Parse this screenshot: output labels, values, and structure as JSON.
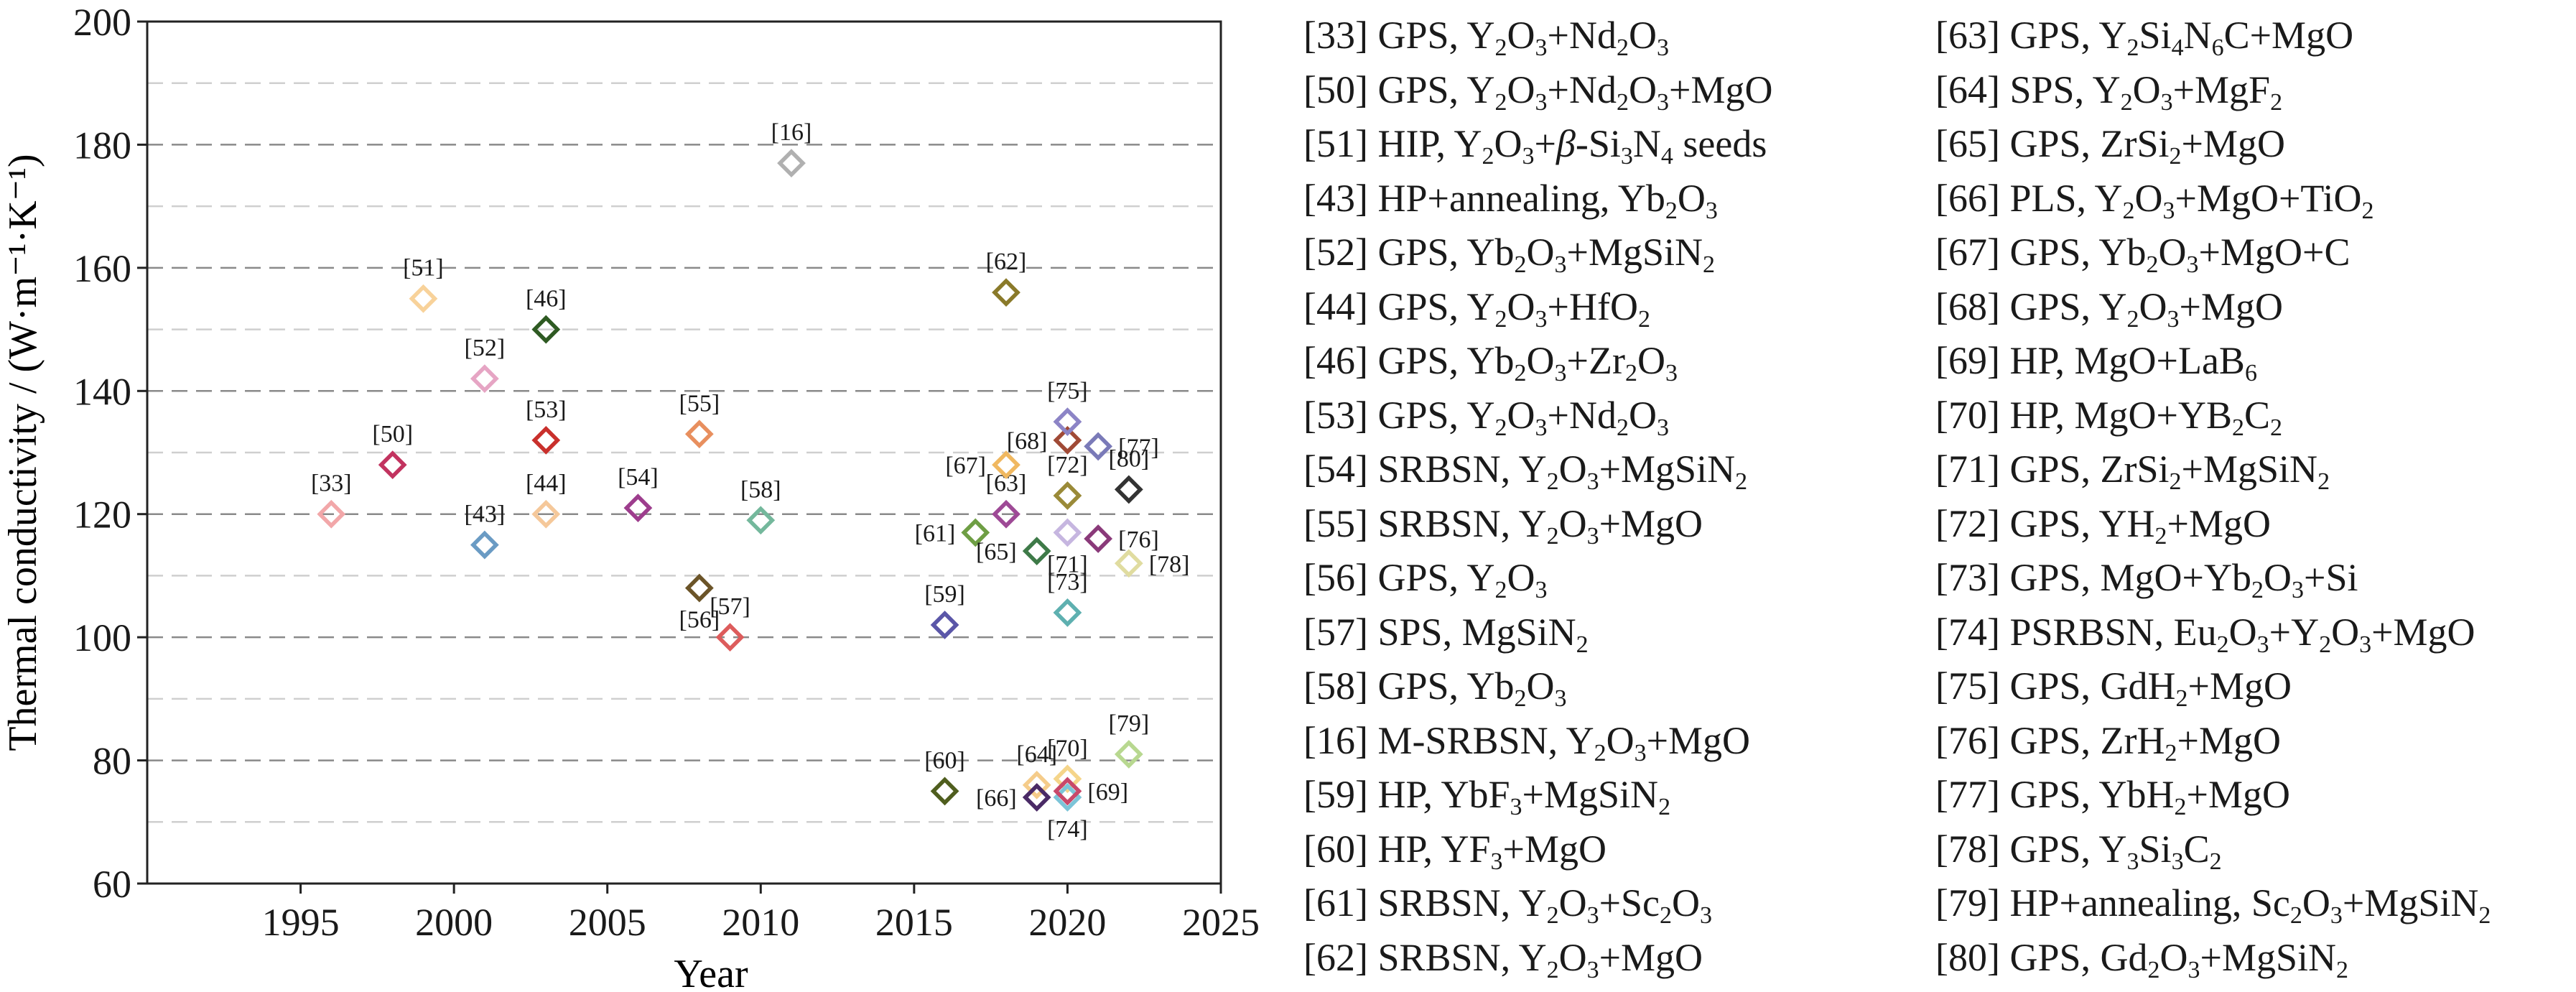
{
  "chart_data": {
    "type": "scatter",
    "title": "",
    "xlabel": "Year",
    "ylabel": "Thermal conductivity / (W·m⁻¹·K⁻¹)",
    "xlim": [
      1990,
      2025
    ],
    "ylim": [
      60,
      200
    ],
    "xticks": [
      1995,
      2000,
      2005,
      2010,
      2015,
      2020,
      2025
    ],
    "yticks": [
      60,
      80,
      100,
      120,
      140,
      160,
      180,
      200
    ],
    "minor_gridlines": [
      70,
      90,
      110,
      130,
      150,
      170,
      190
    ],
    "grid": "horizontal dashed",
    "marker": "open diamond",
    "points": [
      {
        "label": "[33]",
        "x": 1996,
        "y": 120,
        "color": "#f2a7a9",
        "lp": "a"
      },
      {
        "label": "[50]",
        "x": 1998,
        "y": 128,
        "color": "#c2335f",
        "lp": "a"
      },
      {
        "label": "[51]",
        "x": 1999,
        "y": 155,
        "color": "#f8d29a",
        "lp": "a"
      },
      {
        "label": "[43]",
        "x": 2001,
        "y": 115,
        "color": "#6a9bc4",
        "lp": "a"
      },
      {
        "label": "[52]",
        "x": 2001,
        "y": 142,
        "color": "#e6a5c4",
        "lp": "a"
      },
      {
        "label": "[46]",
        "x": 2003,
        "y": 150,
        "color": "#2e5a22",
        "lp": "a"
      },
      {
        "label": "[53]",
        "x": 2003,
        "y": 132,
        "color": "#c9302c",
        "lp": "a"
      },
      {
        "label": "[44]",
        "x": 2003,
        "y": 120,
        "color": "#f5c89a",
        "lp": "a"
      },
      {
        "label": "[54]",
        "x": 2006,
        "y": 121,
        "color": "#9d3d8d",
        "lp": "a"
      },
      {
        "label": "[55]",
        "x": 2008,
        "y": 133,
        "color": "#e88f5e",
        "lp": "a"
      },
      {
        "label": "[56]",
        "x": 2008,
        "y": 108,
        "color": "#6b5428",
        "lp": "b"
      },
      {
        "label": "[57]",
        "x": 2009,
        "y": 100,
        "color": "#dd5c5c",
        "lp": "a"
      },
      {
        "label": "[58]",
        "x": 2010,
        "y": 119,
        "color": "#74b89c",
        "lp": "a"
      },
      {
        "label": "[16]",
        "x": 2011,
        "y": 177,
        "color": "#b0b0b0",
        "lp": "a"
      },
      {
        "label": "[59]",
        "x": 2016,
        "y": 102,
        "color": "#5a56a8",
        "lp": "a"
      },
      {
        "label": "[60]",
        "x": 2016,
        "y": 75,
        "color": "#4f5e1e",
        "lp": "a"
      },
      {
        "label": "[61]",
        "x": 2017,
        "y": 117,
        "color": "#6e9e44",
        "lp": "l"
      },
      {
        "label": "[62]",
        "x": 2018,
        "y": 156,
        "color": "#8a7a2a",
        "lp": "a"
      },
      {
        "label": "[63]",
        "x": 2018,
        "y": 120,
        "color": "#9e4a96",
        "lp": "a"
      },
      {
        "label": "[67]",
        "x": 2018,
        "y": 128,
        "color": "#f0b860",
        "lp": "l"
      },
      {
        "label": "[64]",
        "x": 2019,
        "y": 76,
        "color": "#f5cc8a",
        "lp": "a"
      },
      {
        "label": "[65]",
        "x": 2019,
        "y": 114,
        "color": "#3e7a48",
        "lp": "l"
      },
      {
        "label": "[66]",
        "x": 2019,
        "y": 74,
        "color": "#4a2a66",
        "lp": "l"
      },
      {
        "label": "[68]",
        "x": 2020,
        "y": 132,
        "color": "#a04a36",
        "lp": "l"
      },
      {
        "label": "[75]",
        "x": 2020,
        "y": 135,
        "color": "#8c84c6",
        "lp": "a"
      },
      {
        "label": "[72]",
        "x": 2020,
        "y": 123,
        "color": "#9a8a38",
        "lp": "a"
      },
      {
        "label": "[71]",
        "x": 2020,
        "y": 117,
        "color": "#c6b6e0",
        "lp": "b"
      },
      {
        "label": "[73]",
        "x": 2020,
        "y": 104,
        "color": "#5eb0b0",
        "lp": "a"
      },
      {
        "label": "[70]",
        "x": 2020,
        "y": 77,
        "color": "#f5d58a",
        "lp": "a"
      },
      {
        "label": "[74]",
        "x": 2020,
        "y": 74,
        "color": "#7cc4d8",
        "lp": "b"
      },
      {
        "label": "[69]",
        "x": 2020,
        "y": 75,
        "color": "#c8486a",
        "lp": "r"
      },
      {
        "label": "[76]",
        "x": 2021,
        "y": 116,
        "color": "#8a3a7a",
        "lp": "r"
      },
      {
        "label": "[77]",
        "x": 2021,
        "y": 131,
        "color": "#7a7ab8",
        "lp": "r"
      },
      {
        "label": "[80]",
        "x": 2022,
        "y": 124,
        "color": "#333333",
        "lp": "a"
      },
      {
        "label": "[78]",
        "x": 2022,
        "y": 112,
        "color": "#e0dca0",
        "lp": "r"
      },
      {
        "label": "[79]",
        "x": 2022,
        "y": 81,
        "color": "#b8d890",
        "lp": "a"
      }
    ]
  },
  "legend": {
    "columns": [
      [
        {
          "ref": "[33]",
          "method": "GPS,",
          "parts": [
            [
              "Y"
            ],
            [
              "2",
              "s"
            ],
            [
              "O"
            ],
            [
              "3",
              "s"
            ],
            [
              "+Nd"
            ],
            [
              "2",
              "s"
            ],
            [
              "O"
            ],
            [
              "3",
              "s"
            ]
          ]
        },
        {
          "ref": "[50]",
          "method": "GPS,",
          "parts": [
            [
              "Y"
            ],
            [
              "2",
              "s"
            ],
            [
              "O"
            ],
            [
              "3",
              "s"
            ],
            [
              "+Nd"
            ],
            [
              "2",
              "s"
            ],
            [
              "O"
            ],
            [
              "3",
              "s"
            ],
            [
              "+MgO"
            ]
          ]
        },
        {
          "ref": "[51]",
          "method": "HIP,",
          "parts": [
            [
              "Y"
            ],
            [
              "2",
              "s"
            ],
            [
              "O"
            ],
            [
              "3",
              "s"
            ],
            [
              "+"
            ],
            [
              "β",
              "i"
            ],
            [
              "-Si"
            ],
            [
              "3",
              "s"
            ],
            [
              "N"
            ],
            [
              "4",
              "s"
            ],
            [
              " seeds"
            ]
          ]
        },
        {
          "ref": "[43]",
          "method": "HP+annealing,",
          "parts": [
            [
              "Yb"
            ],
            [
              "2",
              "s"
            ],
            [
              "O"
            ],
            [
              "3",
              "s"
            ]
          ]
        },
        {
          "ref": "[52]",
          "method": "GPS,",
          "parts": [
            [
              "Yb"
            ],
            [
              "2",
              "s"
            ],
            [
              "O"
            ],
            [
              "3",
              "s"
            ],
            [
              "+MgSiN"
            ],
            [
              "2",
              "s"
            ]
          ]
        },
        {
          "ref": "[44]",
          "method": "GPS,",
          "parts": [
            [
              "Y"
            ],
            [
              "2",
              "s"
            ],
            [
              "O"
            ],
            [
              "3",
              "s"
            ],
            [
              "+HfO"
            ],
            [
              "2",
              "s"
            ]
          ]
        },
        {
          "ref": "[46]",
          "method": "GPS,",
          "parts": [
            [
              "Yb"
            ],
            [
              "2",
              "s"
            ],
            [
              "O"
            ],
            [
              "3",
              "s"
            ],
            [
              "+Zr"
            ],
            [
              "2",
              "s"
            ],
            [
              "O"
            ],
            [
              "3",
              "s"
            ]
          ]
        },
        {
          "ref": "[53]",
          "method": "GPS,",
          "parts": [
            [
              "Y"
            ],
            [
              "2",
              "s"
            ],
            [
              "O"
            ],
            [
              "3",
              "s"
            ],
            [
              "+Nd"
            ],
            [
              "2",
              "s"
            ],
            [
              "O"
            ],
            [
              "3",
              "s"
            ]
          ]
        },
        {
          "ref": "[54]",
          "method": "SRBSN,",
          "parts": [
            [
              "Y"
            ],
            [
              "2",
              "s"
            ],
            [
              "O"
            ],
            [
              "3",
              "s"
            ],
            [
              "+MgSiN"
            ],
            [
              "2",
              "s"
            ]
          ]
        },
        {
          "ref": "[55]",
          "method": "SRBSN,",
          "parts": [
            [
              "Y"
            ],
            [
              "2",
              "s"
            ],
            [
              "O"
            ],
            [
              "3",
              "s"
            ],
            [
              "+MgO"
            ]
          ]
        },
        {
          "ref": "[56]",
          "method": "GPS,",
          "parts": [
            [
              "Y"
            ],
            [
              "2",
              "s"
            ],
            [
              "O"
            ],
            [
              "3",
              "s"
            ]
          ]
        },
        {
          "ref": "[57]",
          "method": "SPS,",
          "parts": [
            [
              "MgSiN"
            ],
            [
              "2",
              "s"
            ]
          ]
        },
        {
          "ref": "[58]",
          "method": "GPS,",
          "parts": [
            [
              "Yb"
            ],
            [
              "2",
              "s"
            ],
            [
              "O"
            ],
            [
              "3",
              "s"
            ]
          ]
        },
        {
          "ref": "[16]",
          "method": "M-SRBSN,",
          "parts": [
            [
              "Y"
            ],
            [
              "2",
              "s"
            ],
            [
              "O"
            ],
            [
              "3",
              "s"
            ],
            [
              "+MgO"
            ]
          ]
        },
        {
          "ref": "[59]",
          "method": "HP,",
          "parts": [
            [
              "YbF"
            ],
            [
              "3",
              "s"
            ],
            [
              "+MgSiN"
            ],
            [
              "2",
              "s"
            ]
          ]
        },
        {
          "ref": "[60]",
          "method": "HP,",
          "parts": [
            [
              "YF"
            ],
            [
              "3",
              "s"
            ],
            [
              "+MgO"
            ]
          ]
        },
        {
          "ref": "[61]",
          "method": "SRBSN,",
          "parts": [
            [
              "Y"
            ],
            [
              "2",
              "s"
            ],
            [
              "O"
            ],
            [
              "3",
              "s"
            ],
            [
              "+Sc"
            ],
            [
              "2",
              "s"
            ],
            [
              "O"
            ],
            [
              "3",
              "s"
            ]
          ]
        },
        {
          "ref": "[62]",
          "method": "SRBSN,",
          "parts": [
            [
              "Y"
            ],
            [
              "2",
              "s"
            ],
            [
              "O"
            ],
            [
              "3",
              "s"
            ],
            [
              "+MgO"
            ]
          ]
        }
      ],
      [
        {
          "ref": "[63]",
          "method": "GPS,",
          "parts": [
            [
              "Y"
            ],
            [
              "2",
              "s"
            ],
            [
              "Si"
            ],
            [
              "4",
              "s"
            ],
            [
              "N"
            ],
            [
              "6",
              "s"
            ],
            [
              "C+MgO"
            ]
          ]
        },
        {
          "ref": "[64]",
          "method": "SPS,",
          "parts": [
            [
              "Y"
            ],
            [
              "2",
              "s"
            ],
            [
              "O"
            ],
            [
              "3",
              "s"
            ],
            [
              "+MgF"
            ],
            [
              "2",
              "s"
            ]
          ]
        },
        {
          "ref": "[65]",
          "method": "GPS,",
          "parts": [
            [
              "ZrSi"
            ],
            [
              "2",
              "s"
            ],
            [
              "+MgO"
            ]
          ]
        },
        {
          "ref": "[66]",
          "method": "PLS,",
          "parts": [
            [
              "Y"
            ],
            [
              "2",
              "s"
            ],
            [
              "O"
            ],
            [
              "3",
              "s"
            ],
            [
              "+MgO+TiO"
            ],
            [
              "2",
              "s"
            ]
          ]
        },
        {
          "ref": "[67]",
          "method": "GPS,",
          "parts": [
            [
              "Yb"
            ],
            [
              "2",
              "s"
            ],
            [
              "O"
            ],
            [
              "3",
              "s"
            ],
            [
              "+MgO+C"
            ]
          ]
        },
        {
          "ref": "[68]",
          "method": "GPS,",
          "parts": [
            [
              "Y"
            ],
            [
              "2",
              "s"
            ],
            [
              "O"
            ],
            [
              "3",
              "s"
            ],
            [
              "+MgO"
            ]
          ]
        },
        {
          "ref": "[69]",
          "method": "HP,",
          "parts": [
            [
              "MgO+LaB"
            ],
            [
              "6",
              "s"
            ]
          ]
        },
        {
          "ref": "[70]",
          "method": "HP,",
          "parts": [
            [
              "MgO+YB"
            ],
            [
              "2",
              "s"
            ],
            [
              "C"
            ],
            [
              "2",
              "s"
            ]
          ]
        },
        {
          "ref": "[71]",
          "method": "GPS,",
          "parts": [
            [
              "ZrSi"
            ],
            [
              "2",
              "s"
            ],
            [
              "+MgSiN"
            ],
            [
              "2",
              "s"
            ]
          ]
        },
        {
          "ref": "[72]",
          "method": "GPS,",
          "parts": [
            [
              "YH"
            ],
            [
              "2",
              "s"
            ],
            [
              "+MgO"
            ]
          ]
        },
        {
          "ref": "[73]",
          "method": "GPS,",
          "parts": [
            [
              "MgO+Yb"
            ],
            [
              "2",
              "s"
            ],
            [
              "O"
            ],
            [
              "3",
              "s"
            ],
            [
              "+Si"
            ]
          ]
        },
        {
          "ref": "[74]",
          "method": "PSRBSN,",
          "parts": [
            [
              "Eu"
            ],
            [
              "2",
              "s"
            ],
            [
              "O"
            ],
            [
              "3",
              "s"
            ],
            [
              "+Y"
            ],
            [
              "2",
              "s"
            ],
            [
              "O"
            ],
            [
              "3",
              "s"
            ],
            [
              "+MgO"
            ]
          ]
        },
        {
          "ref": "[75]",
          "method": "GPS,",
          "parts": [
            [
              "GdH"
            ],
            [
              "2",
              "s"
            ],
            [
              "+MgO"
            ]
          ]
        },
        {
          "ref": "[76]",
          "method": "GPS,",
          "parts": [
            [
              "ZrH"
            ],
            [
              "2",
              "s"
            ],
            [
              "+MgO"
            ]
          ]
        },
        {
          "ref": "[77]",
          "method": "GPS,",
          "parts": [
            [
              "YbH"
            ],
            [
              "2",
              "s"
            ],
            [
              "+MgO"
            ]
          ]
        },
        {
          "ref": "[78]",
          "method": "GPS,",
          "parts": [
            [
              "Y"
            ],
            [
              "3",
              "s"
            ],
            [
              "Si"
            ],
            [
              "3",
              "s"
            ],
            [
              "C"
            ],
            [
              "2",
              "s"
            ]
          ]
        },
        {
          "ref": "[79]",
          "method": "HP+annealing,",
          "parts": [
            [
              "Sc"
            ],
            [
              "2",
              "s"
            ],
            [
              "O"
            ],
            [
              "3",
              "s"
            ],
            [
              "+MgSiN"
            ],
            [
              "2",
              "s"
            ]
          ]
        },
        {
          "ref": "[80]",
          "method": "GPS,",
          "parts": [
            [
              "Gd"
            ],
            [
              "2",
              "s"
            ],
            [
              "O"
            ],
            [
              "3",
              "s"
            ],
            [
              "+MgSiN"
            ],
            [
              "2",
              "s"
            ]
          ]
        }
      ]
    ]
  }
}
